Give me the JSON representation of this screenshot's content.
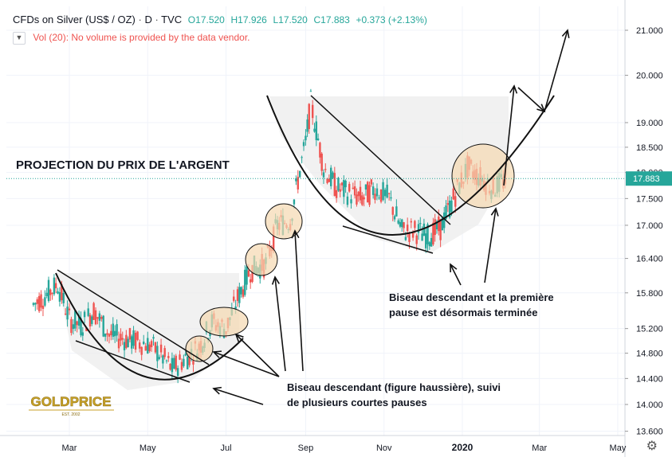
{
  "header": {
    "symbol": "CFDs on Silver (US$ / OZ)",
    "interval": "D",
    "source": "TVC",
    "ohlc": [
      {
        "label": "O",
        "value": "17.520"
      },
      {
        "label": "H",
        "value": "17.926"
      },
      {
        "label": "L",
        "value": "17.520"
      },
      {
        "label": "C",
        "value": "17.883"
      }
    ],
    "change": "+0.373 (+2.13%)"
  },
  "volume_notice": "Vol (20): No volume is provided by the data vendor.",
  "projection_title": "PROJECTION DU PRIX DE L'ARGENT",
  "annotation_right": {
    "line1": "Biseau descendant et la première",
    "line2": "pause est désormais terminée"
  },
  "annotation_bottom": {
    "line1": "Biseau descendant (figure haussière), suivi",
    "line2": "de plusieurs courtes pauses"
  },
  "logo": {
    "text": "GOLDPRICE",
    "sub": "EST. 2002"
  },
  "colors": {
    "up": "#26a69a",
    "down": "#ef5350",
    "grid": "#f0f3fa",
    "price_line": "#26a69a",
    "annotation": "#111111",
    "highlight": "#f5d9b0"
  },
  "chart_data": {
    "type": "candlestick",
    "title": "CFDs on Silver (US$ / OZ)",
    "y_scale": "log",
    "ylim": [
      13.5,
      21.3
    ],
    "y_ticks": [
      "21.000",
      "20.000",
      "19.000",
      "18.500",
      "18.000",
      "17.500",
      "17.000",
      "16.400",
      "15.800",
      "15.200",
      "14.800",
      "14.400",
      "14.000",
      "13.600"
    ],
    "last_price": "17.883",
    "x_ticks": [
      "Mar",
      "May",
      "Jul",
      "Sep",
      "Nov",
      "2020",
      "Mar",
      "May"
    ],
    "grid": true,
    "series": [
      {
        "values": [
          {
            "d": "2019-02-01",
            "c": 15.6
          },
          {
            "d": "2019-02-10",
            "c": 15.75
          },
          {
            "d": "2019-02-20",
            "c": 15.95
          },
          {
            "d": "2019-03-01",
            "c": 15.35
          },
          {
            "d": "2019-03-10",
            "c": 15.25
          },
          {
            "d": "2019-03-20",
            "c": 15.5
          },
          {
            "d": "2019-04-01",
            "c": 15.1
          },
          {
            "d": "2019-04-10",
            "c": 15.05
          },
          {
            "d": "2019-04-20",
            "c": 15.0
          },
          {
            "d": "2019-05-01",
            "c": 14.95
          },
          {
            "d": "2019-05-10",
            "c": 14.8
          },
          {
            "d": "2019-05-20",
            "c": 14.55
          },
          {
            "d": "2019-06-01",
            "c": 14.75
          },
          {
            "d": "2019-06-10",
            "c": 14.9
          },
          {
            "d": "2019-06-20",
            "c": 15.3
          },
          {
            "d": "2019-07-01",
            "c": 15.2
          },
          {
            "d": "2019-07-10",
            "c": 15.7
          },
          {
            "d": "2019-07-20",
            "c": 16.2
          },
          {
            "d": "2019-08-01",
            "c": 16.3
          },
          {
            "d": "2019-08-10",
            "c": 17.0
          },
          {
            "d": "2019-08-20",
            "c": 17.1
          },
          {
            "d": "2019-09-01",
            "c": 18.6
          },
          {
            "d": "2019-09-05",
            "c": 19.4
          },
          {
            "d": "2019-09-15",
            "c": 18.1
          },
          {
            "d": "2019-09-25",
            "c": 17.7
          },
          {
            "d": "2019-10-05",
            "c": 17.6
          },
          {
            "d": "2019-10-15",
            "c": 17.5
          },
          {
            "d": "2019-10-25",
            "c": 17.7
          },
          {
            "d": "2019-11-05",
            "c": 17.5
          },
          {
            "d": "2019-11-15",
            "c": 16.9
          },
          {
            "d": "2019-11-25",
            "c": 16.9
          },
          {
            "d": "2019-12-05",
            "c": 16.8
          },
          {
            "d": "2019-12-15",
            "c": 16.95
          },
          {
            "d": "2019-12-25",
            "c": 17.5
          },
          {
            "d": "2020-01-05",
            "c": 18.1
          },
          {
            "d": "2020-01-15",
            "c": 17.9
          },
          {
            "d": "2020-01-25",
            "c": 17.7
          },
          {
            "d": "2020-02-05",
            "c": 17.883
          }
        ]
      }
    ]
  }
}
